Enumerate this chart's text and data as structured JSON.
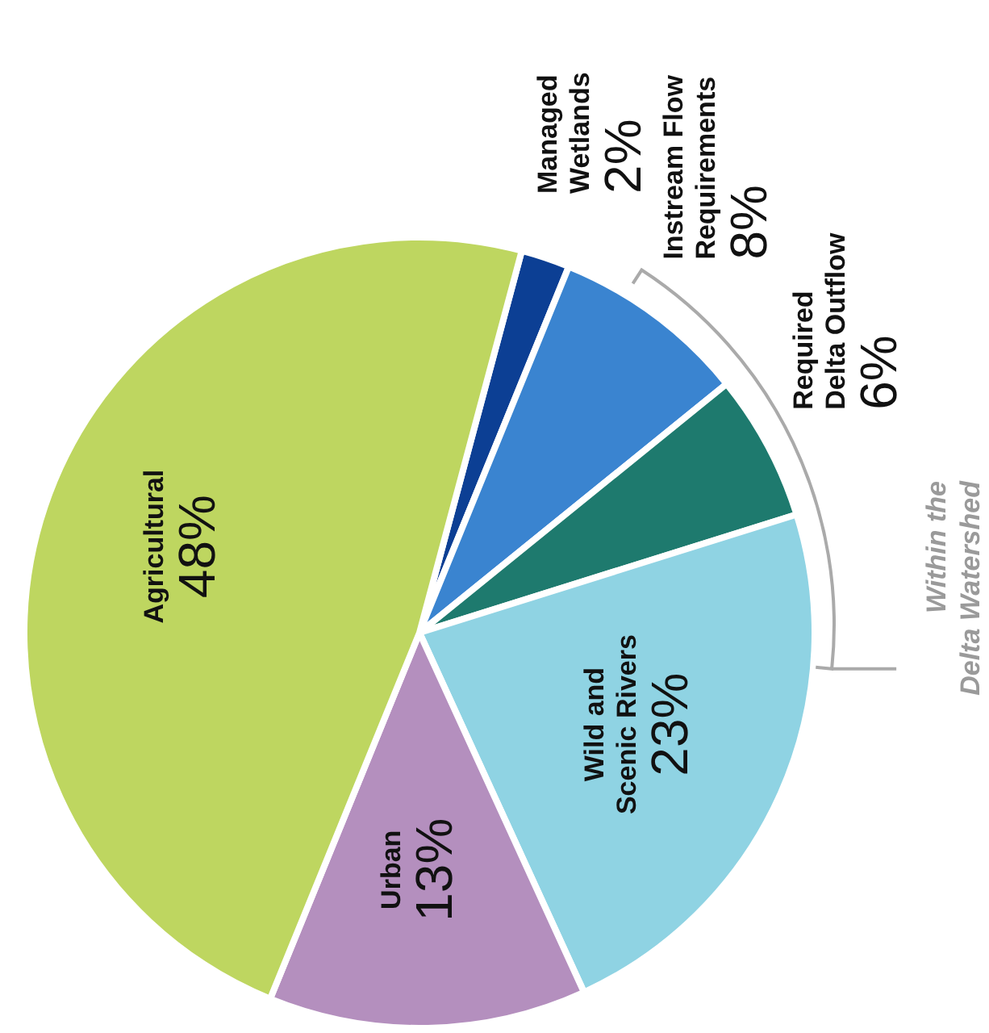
{
  "chart_data": {
    "type": "pie",
    "categories": [
      "Managed Wetlands",
      "Instream Flow Requirements",
      "Required Delta Outflow",
      "Wild and Scenic Rivers",
      "Urban",
      "Agricultural"
    ],
    "values": [
      2,
      8,
      6,
      23,
      13,
      48
    ],
    "value_labels": [
      "2%",
      "8%",
      "6%",
      "23%",
      "13%",
      "48%"
    ],
    "colors": [
      "#0c3f94",
      "#3a84d0",
      "#1e7a6e",
      "#8fd3e3",
      "#b48fbe",
      "#bed660"
    ],
    "annotations": [
      "Within the Delta Watershed"
    ],
    "legend": false
  }
}
